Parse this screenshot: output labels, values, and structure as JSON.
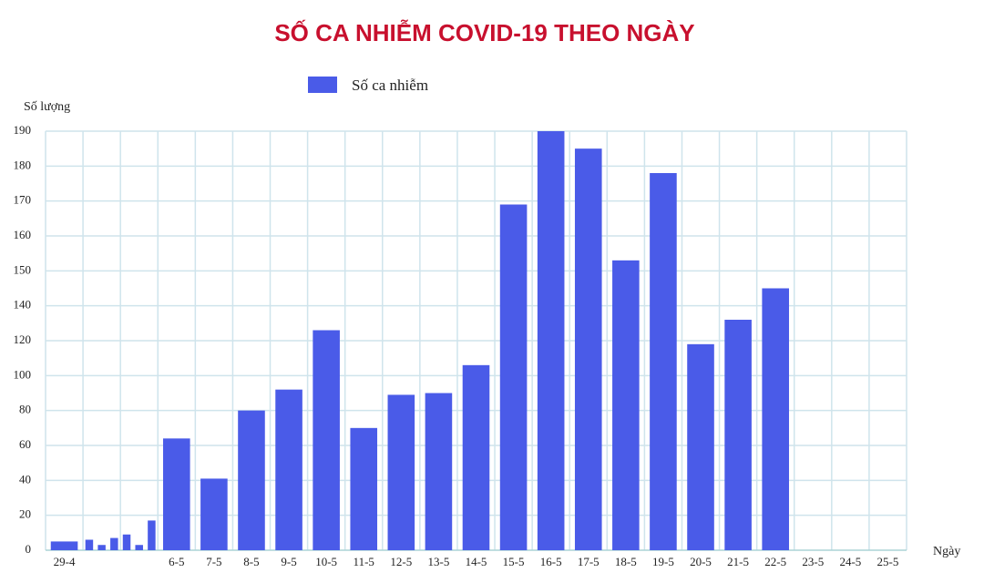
{
  "chart_data": {
    "type": "bar",
    "title": "SỐ CA NHIỄM COVID-19 THEO NGÀY",
    "y_label": "Số lượng",
    "x_label": "Ngày",
    "categories": [
      "29-4",
      null,
      null,
      null,
      null,
      null,
      null,
      "6-5",
      "7-5",
      "8-5",
      "9-5",
      "10-5",
      "11-5",
      "12-5",
      "13-5",
      "14-5",
      "15-5",
      "16-5",
      "17-5",
      "18-5",
      "19-5",
      "20-5",
      "21-5",
      "22-5",
      "23-5",
      "24-5",
      "25-5"
    ],
    "series": [
      {
        "name": "Số ca nhiễm",
        "color": "#4a5be8",
        "values": [
          5,
          6,
          3,
          7,
          9,
          3,
          17,
          64,
          41,
          80,
          92,
          126,
          70,
          89,
          90,
          106,
          169,
          190,
          185,
          153,
          178,
          118,
          132,
          145,
          null,
          null,
          null
        ]
      }
    ],
    "ylim": [
      0,
      190
    ],
    "yticks": [
      0,
      20,
      40,
      60,
      80,
      100,
      120,
      140,
      150,
      160,
      170,
      180,
      190
    ],
    "grid": true,
    "legend": "top"
  }
}
